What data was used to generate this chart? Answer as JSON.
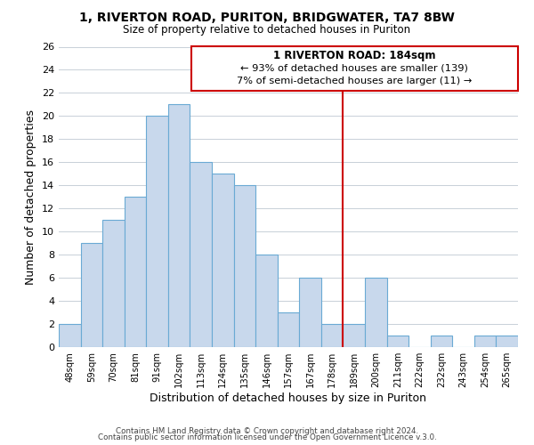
{
  "title": "1, RIVERTON ROAD, PURITON, BRIDGWATER, TA7 8BW",
  "subtitle": "Size of property relative to detached houses in Puriton",
  "xlabel": "Distribution of detached houses by size in Puriton",
  "ylabel": "Number of detached properties",
  "footer_line1": "Contains HM Land Registry data © Crown copyright and database right 2024.",
  "footer_line2": "Contains public sector information licensed under the Open Government Licence v.3.0.",
  "bin_labels": [
    "48sqm",
    "59sqm",
    "70sqm",
    "81sqm",
    "91sqm",
    "102sqm",
    "113sqm",
    "124sqm",
    "135sqm",
    "146sqm",
    "157sqm",
    "167sqm",
    "178sqm",
    "189sqm",
    "200sqm",
    "211sqm",
    "222sqm",
    "232sqm",
    "243sqm",
    "254sqm",
    "265sqm"
  ],
  "bar_heights": [
    2,
    9,
    11,
    13,
    20,
    21,
    16,
    15,
    14,
    8,
    3,
    6,
    2,
    2,
    6,
    1,
    0,
    1,
    0,
    1,
    1
  ],
  "bar_color": "#c8d8ec",
  "bar_edge_color": "#6aaad4",
  "vline_x_index": 12.5,
  "vline_color": "#cc0000",
  "annotation_title": "1 RIVERTON ROAD: 184sqm",
  "annotation_line1": "← 93% of detached houses are smaller (139)",
  "annotation_line2": "7% of semi-detached houses are larger (11) →",
  "annotation_box_color": "#ffffff",
  "annotation_box_edge": "#cc0000",
  "ylim": [
    0,
    26
  ],
  "yticks": [
    0,
    2,
    4,
    6,
    8,
    10,
    12,
    14,
    16,
    18,
    20,
    22,
    24,
    26
  ],
  "background_color": "#ffffff",
  "grid_color": "#c8d0d8"
}
